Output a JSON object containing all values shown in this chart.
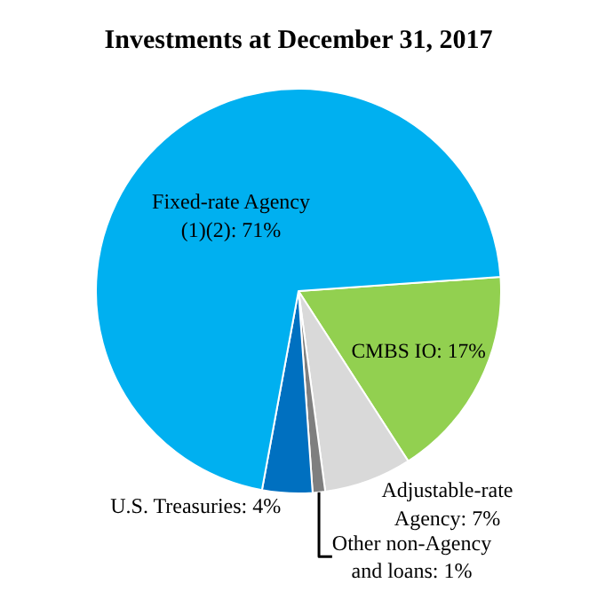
{
  "chart_data": {
    "type": "pie",
    "title": "Investments at December 31, 2017",
    "categories": [
      "CMBS IO",
      "Adjustable-rate\nAgency",
      "Other non-Agency\nand loans",
      "U.S. Treasuries",
      "Fixed-rate Agency\n(1)(2)"
    ],
    "values": [
      17,
      7,
      1,
      4,
      71
    ],
    "colors": [
      "#92d050",
      "#d9d9d9",
      "#7f7f7f",
      "#0070c0",
      "#00b0f0"
    ],
    "value_labels": [
      "17%",
      "7%",
      "1%",
      "4%",
      "71%"
    ],
    "legend": false
  }
}
